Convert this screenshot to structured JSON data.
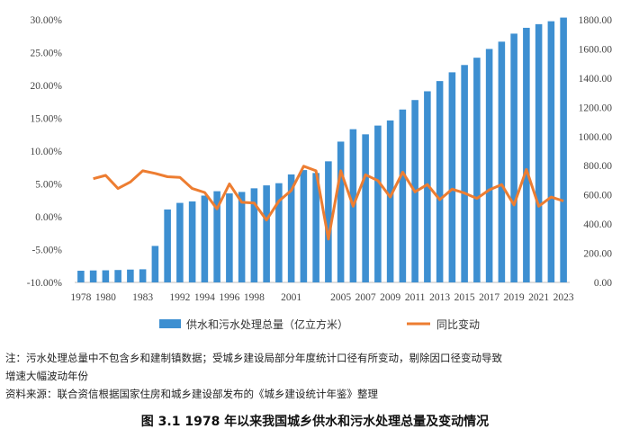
{
  "chart_data": {
    "type": "bar+line",
    "categories": [
      "1978",
      "1979",
      "1980",
      "1981",
      "1982",
      "1983",
      "1990",
      "1991",
      "1992",
      "1993",
      "1994",
      "1995",
      "1996",
      "1997",
      "1998",
      "1999",
      "2000",
      "2001",
      "2002",
      "2003",
      "2004",
      "2005",
      "2006",
      "2007",
      "2008",
      "2009",
      "2010",
      "2011",
      "2012",
      "2013",
      "2014",
      "2015",
      "2016",
      "2017",
      "2018",
      "2019",
      "2020",
      "2021",
      "2022",
      "2023"
    ],
    "x_tick_labels": [
      "1978",
      "1980",
      "1983",
      "1992",
      "1994",
      "1996",
      "1998",
      "2001",
      "2005",
      "2007",
      "2009",
      "2011",
      "2013",
      "2015",
      "2017",
      "2019",
      "2021",
      "2023"
    ],
    "series": [
      {
        "name": "供水和污水处理总量（亿立方米）",
        "type": "bar",
        "axis": "right",
        "color": "#3D8FD1",
        "values": [
          80,
          82,
          83,
          85,
          88,
          90,
          250,
          500,
          545,
          555,
          595,
          625,
          610,
          620,
          645,
          665,
          680,
          740,
          770,
          750,
          830,
          965,
          1050,
          1015,
          1075,
          1110,
          1185,
          1250,
          1310,
          1380,
          1440,
          1490,
          1540,
          1600,
          1650,
          1705,
          1745,
          1770,
          1790,
          1815
        ]
      },
      {
        "name": "同比变动",
        "type": "line",
        "axis": "left",
        "color": "#ED7D31",
        "values": [
          null,
          5.8,
          6.3,
          4.3,
          5.3,
          7.0,
          6.6,
          6.1,
          6.0,
          4.3,
          3.7,
          1.2,
          5.0,
          2.2,
          2.1,
          -0.5,
          2.4,
          4.0,
          7.7,
          7.0,
          -3.4,
          7.0,
          1.6,
          6.4,
          5.5,
          3.0,
          6.8,
          3.8,
          4.9,
          2.6,
          4.2,
          3.6,
          2.8,
          4.1,
          4.9,
          1.8,
          7.2,
          1.6,
          3.0,
          2.4
        ]
      }
    ],
    "left_axis": {
      "min": -10,
      "max": 30,
      "step": 5,
      "format": "percent"
    },
    "right_axis": {
      "min": 0,
      "max": 1800,
      "step": 200
    },
    "legend_position": "bottom",
    "title": "图 3.1    1978 年以来我国城乡供水和污水处理总量及变动情况"
  },
  "notes": {
    "line1": "注：污水处理总量中不包含乡和建制镇数据；受城乡建设局部分年度统计口径有所变动，剔除因口径变动导致",
    "line2": "增速大幅波动年份",
    "line3": "资料来源：联合资信根据国家住房和城乡建设部发布的《城乡建设统计年鉴》整理"
  }
}
